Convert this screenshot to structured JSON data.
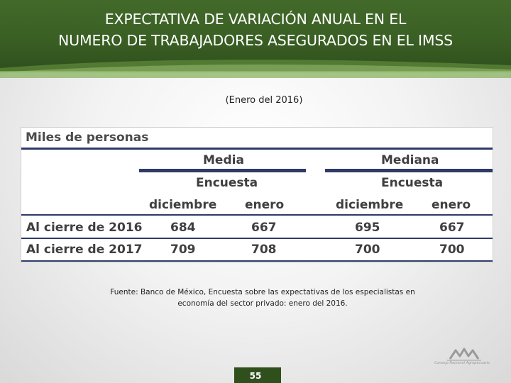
{
  "header": {
    "title_line1": "EXPECTATIVA DE VARIACIÓN ANUAL EN EL",
    "title_line2": "NUMERO DE TRABAJADORES ASEGURADOS EN EL IMSS"
  },
  "subtitle": "(Enero del 2016)",
  "table": {
    "title": "Miles de personas",
    "groups": [
      {
        "label": "Media",
        "sublabel": "Encuesta",
        "columns": [
          "diciembre",
          "enero"
        ]
      },
      {
        "label": "Mediana",
        "sublabel": "Encuesta",
        "columns": [
          "diciembre",
          "enero"
        ]
      }
    ],
    "rows": [
      {
        "label": "Al cierre de 2016",
        "values": [
          "684",
          "667",
          "695",
          "667"
        ]
      },
      {
        "label": "Al cierre de 2017",
        "values": [
          "709",
          "708",
          "700",
          "700"
        ]
      }
    ]
  },
  "source": {
    "line1": "Fuente: Banco de México, Encuesta sobre las expectativas de los especialistas en",
    "line2": "economía del sector privado: enero del 2016."
  },
  "logo": {
    "name": "consejo-nacional-agropecuario-logo",
    "text": "Consejo Nacional Agropecuario"
  },
  "page_number": "55",
  "colors": {
    "header_green": "#3a5f24",
    "table_rule": "#2e3a68"
  }
}
